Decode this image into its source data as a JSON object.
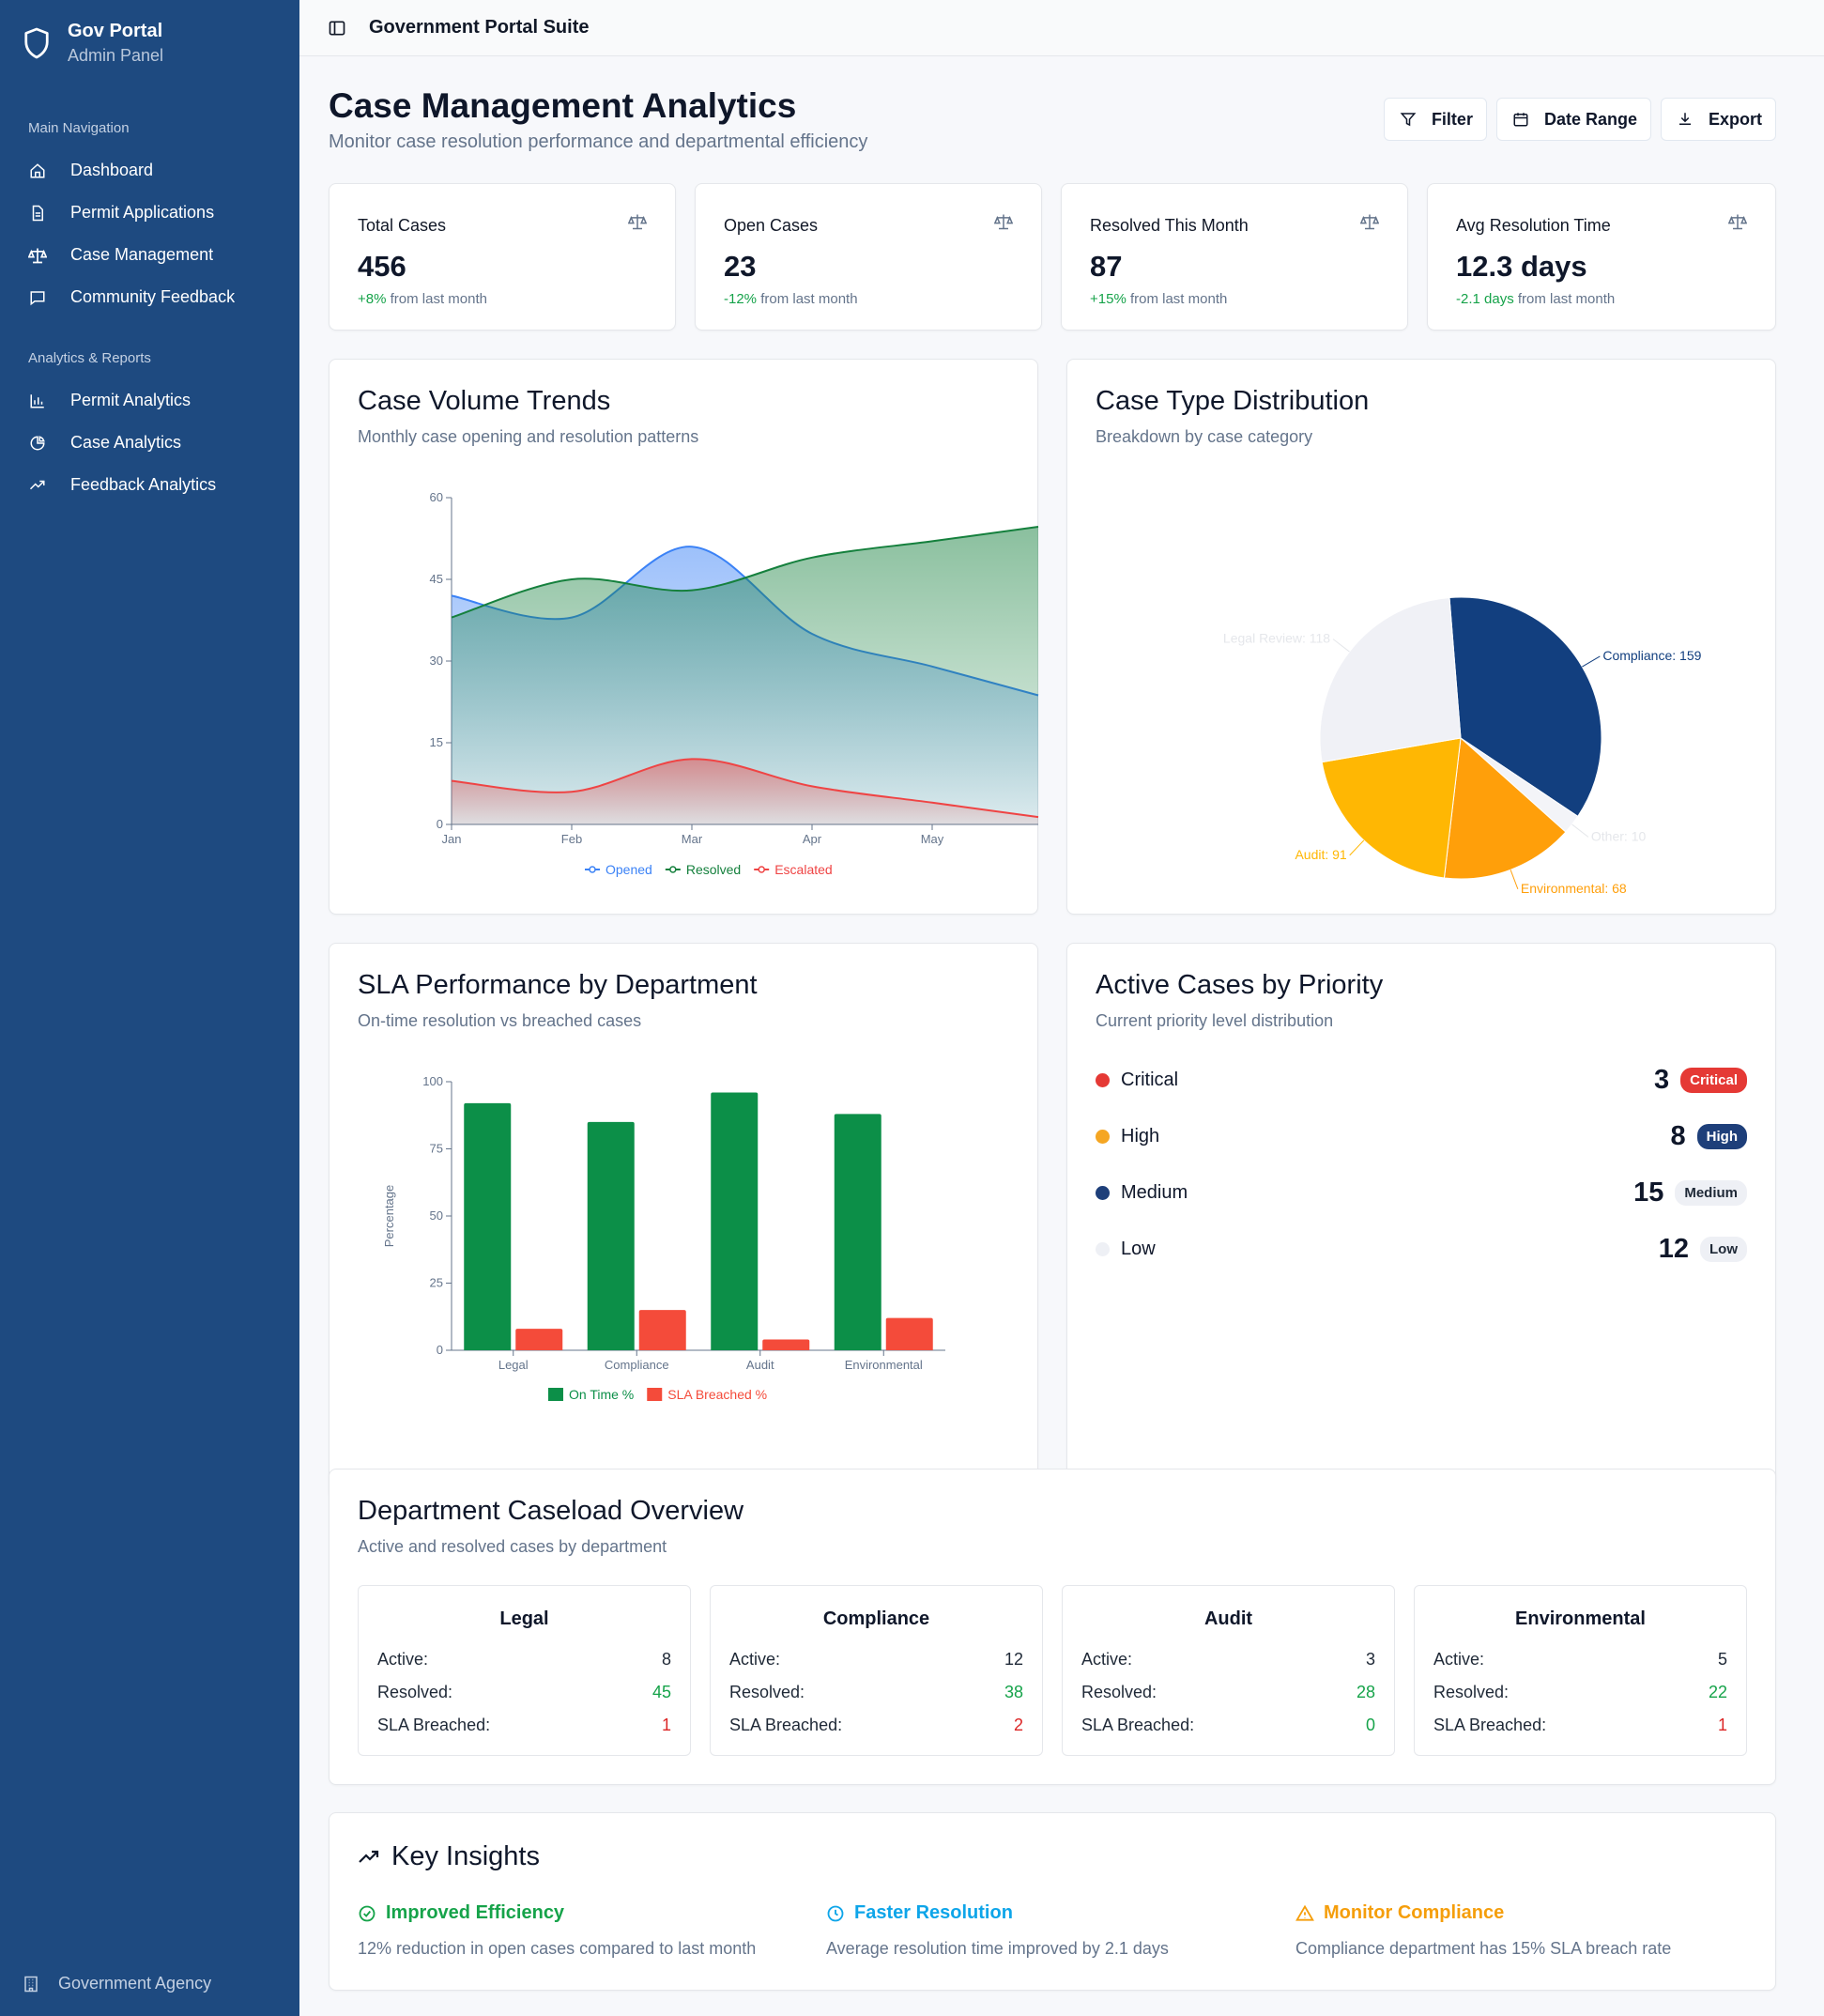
{
  "brand": {
    "title": "Gov Portal",
    "subtitle": "Admin Panel"
  },
  "nav": {
    "main_label": "Main Navigation",
    "main_items": [
      {
        "label": "Dashboard",
        "icon": "home-icon"
      },
      {
        "label": "Permit Applications",
        "icon": "document-icon"
      },
      {
        "label": "Case Management",
        "icon": "scale-icon"
      },
      {
        "label": "Community Feedback",
        "icon": "message-icon"
      }
    ],
    "reports_label": "Analytics & Reports",
    "reports_items": [
      {
        "label": "Permit Analytics",
        "icon": "bar-chart-icon"
      },
      {
        "label": "Case Analytics",
        "icon": "pie-chart-icon"
      },
      {
        "label": "Feedback Analytics",
        "icon": "trending-up-icon"
      }
    ],
    "footer": "Government Agency"
  },
  "topbar": {
    "title": "Government Portal Suite"
  },
  "header": {
    "title": "Case Management Analytics",
    "subtitle": "Monitor case resolution performance and departmental efficiency",
    "filter": "Filter",
    "date_range": "Date Range",
    "export": "Export"
  },
  "stats": [
    {
      "label": "Total Cases",
      "value": "456",
      "delta": "+8%",
      "suffix": " from last month"
    },
    {
      "label": "Open Cases",
      "value": "23",
      "delta": "-12%",
      "suffix": " from last month"
    },
    {
      "label": "Resolved This Month",
      "value": "87",
      "delta": "+15%",
      "suffix": " from last month"
    },
    {
      "label": "Avg Resolution Time",
      "value": "12.3 days",
      "delta": "-2.1 days",
      "suffix": " from last month"
    }
  ],
  "volume": {
    "title": "Case Volume Trends",
    "subtitle": "Monthly case opening and resolution patterns"
  },
  "distribution": {
    "title": "Case Type Distribution",
    "subtitle": "Breakdown by case category"
  },
  "sla": {
    "title": "SLA Performance by Department",
    "subtitle": "On-time resolution vs breached cases"
  },
  "priority": {
    "title": "Active Cases by Priority",
    "subtitle": "Current priority level distribution",
    "items": [
      {
        "name": "Critical",
        "count": "3",
        "badge": "Critical",
        "color": "#e53935"
      },
      {
        "name": "High",
        "count": "8",
        "badge": "High",
        "color": "#f5a623"
      },
      {
        "name": "Medium",
        "count": "15",
        "badge": "Medium",
        "color": "#1e3f7a"
      },
      {
        "name": "Low",
        "count": "12",
        "badge": "Low",
        "color": "#eef0f5"
      }
    ]
  },
  "caseload": {
    "title": "Department Caseload Overview",
    "subtitle": "Active and resolved cases by department",
    "row_labels": {
      "active": "Active:",
      "resolved": "Resolved:",
      "breached": "SLA Breached:"
    },
    "departments": [
      {
        "name": "Legal",
        "active": "8",
        "resolved": "45",
        "breached": "1"
      },
      {
        "name": "Compliance",
        "active": "12",
        "resolved": "38",
        "breached": "2"
      },
      {
        "name": "Audit",
        "active": "3",
        "resolved": "28",
        "breached": "0"
      },
      {
        "name": "Environmental",
        "active": "5",
        "resolved": "22",
        "breached": "1"
      }
    ]
  },
  "insights": {
    "title": "Key Insights",
    "items": [
      {
        "title": "Improved Efficiency",
        "text": "12% reduction in open cases compared to last month",
        "color": "#16a34a"
      },
      {
        "title": "Faster Resolution",
        "text": "Average resolution time improved by 2.1 days",
        "color": "#0ea5e9"
      },
      {
        "title": "Monitor Compliance",
        "text": "Compliance department has 15% SLA breach rate",
        "color": "#f59e0b"
      }
    ]
  },
  "chart_data": [
    {
      "type": "area",
      "categories": [
        "Jan",
        "Feb",
        "Mar",
        "Apr",
        "May"
      ],
      "ylim": [
        0,
        60
      ],
      "yticks": [
        0,
        15,
        30,
        45,
        60
      ],
      "series": [
        {
          "name": "Opened",
          "color": "#3b82f6",
          "values": [
            42,
            38,
            51,
            35,
            29
          ]
        },
        {
          "name": "Resolved",
          "color": "#15803d",
          "values": [
            38,
            45,
            43,
            49,
            52
          ]
        },
        {
          "name": "Escalated",
          "color": "#ef4444",
          "values": [
            8,
            6,
            12,
            7,
            4
          ]
        }
      ]
    },
    {
      "type": "pie",
      "slices": [
        {
          "label": "Compliance",
          "value": 159,
          "color": "#123f7f"
        },
        {
          "label": "Other",
          "value": 10,
          "color": "#f3f4f8"
        },
        {
          "label": "Environmental",
          "value": 68,
          "color": "#ff9f0a"
        },
        {
          "label": "Audit",
          "value": 91,
          "color": "#ffb703"
        },
        {
          "label": "Legal Review",
          "value": 118,
          "color": "#f0f1f6"
        }
      ]
    },
    {
      "type": "bar",
      "categories": [
        "Legal",
        "Compliance",
        "Audit",
        "Environmental"
      ],
      "ylabel": "Percentage",
      "ylim": [
        0,
        100
      ],
      "yticks": [
        0,
        25,
        50,
        75,
        100
      ],
      "series": [
        {
          "name": "On Time %",
          "color": "#0c8f48",
          "values": [
            92,
            85,
            96,
            88
          ]
        },
        {
          "name": "SLA Breached %",
          "color": "#f44b3a",
          "values": [
            8,
            15,
            4,
            12
          ]
        }
      ]
    }
  ]
}
